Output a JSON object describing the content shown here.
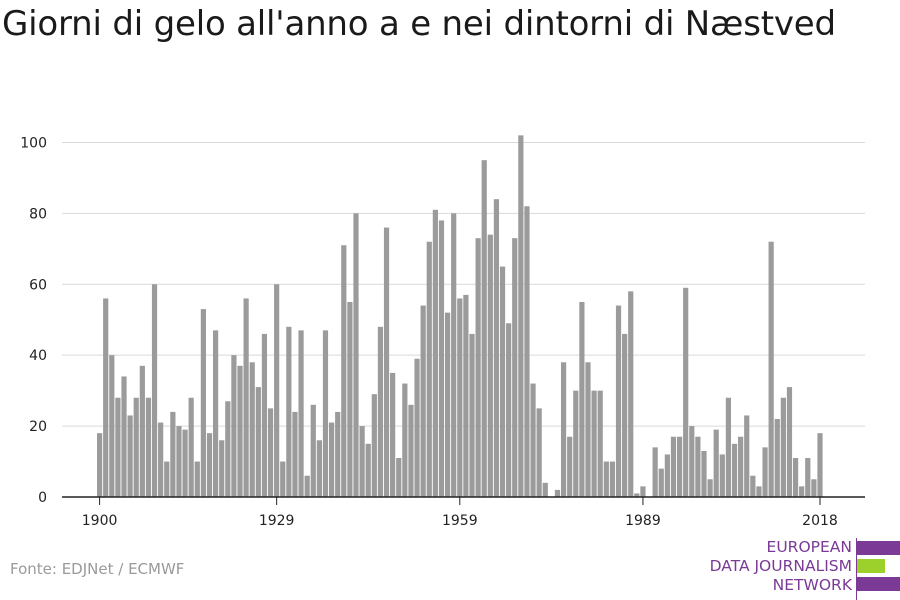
{
  "chart_data": {
    "type": "bar",
    "title": "Giorni di gelo all'anno a e nei dintorni di Næstved",
    "x": [
      1900,
      1901,
      1902,
      1903,
      1904,
      1905,
      1906,
      1907,
      1908,
      1909,
      1910,
      1911,
      1912,
      1913,
      1914,
      1915,
      1916,
      1917,
      1918,
      1919,
      1920,
      1921,
      1922,
      1923,
      1924,
      1925,
      1926,
      1927,
      1928,
      1929,
      1930,
      1931,
      1932,
      1933,
      1934,
      1935,
      1936,
      1937,
      1938,
      1939,
      1940,
      1941,
      1942,
      1943,
      1944,
      1945,
      1946,
      1947,
      1948,
      1949,
      1950,
      1951,
      1952,
      1953,
      1954,
      1955,
      1956,
      1957,
      1958,
      1959,
      1960,
      1961,
      1962,
      1963,
      1964,
      1965,
      1966,
      1967,
      1968,
      1969,
      1970,
      1971,
      1972,
      1973,
      1974,
      1975,
      1976,
      1977,
      1978,
      1979,
      1980,
      1981,
      1982,
      1983,
      1984,
      1985,
      1986,
      1987,
      1988,
      1989,
      1990,
      1991,
      1992,
      1993,
      1994,
      1995,
      1996,
      1997,
      1998,
      1999,
      2000,
      2001,
      2002,
      2003,
      2004,
      2005,
      2006,
      2007,
      2008,
      2009,
      2010,
      2011,
      2012,
      2013,
      2014,
      2015,
      2016,
      2017,
      2018,
      2019
    ],
    "values": [
      18,
      56,
      40,
      28,
      34,
      23,
      28,
      37,
      28,
      60,
      21,
      10,
      24,
      20,
      19,
      28,
      10,
      53,
      18,
      47,
      16,
      27,
      40,
      37,
      56,
      38,
      31,
      46,
      25,
      60,
      10,
      48,
      24,
      47,
      6,
      26,
      16,
      47,
      21,
      24,
      71,
      55,
      80,
      20,
      15,
      29,
      48,
      76,
      35,
      11,
      32,
      26,
      39,
      54,
      72,
      81,
      78,
      52,
      80,
      56,
      57,
      46,
      73,
      95,
      74,
      84,
      65,
      49,
      73,
      102,
      82,
      32,
      25,
      4,
      0,
      2,
      38,
      17,
      30,
      55,
      38,
      30,
      30,
      10,
      10,
      54,
      46,
      58,
      1,
      3,
      0,
      14,
      8,
      12,
      17,
      17,
      59,
      20,
      17,
      13,
      5,
      19,
      12,
      28,
      15,
      17,
      23,
      6,
      3,
      14,
      72,
      22,
      28,
      31,
      11,
      3,
      11,
      5,
      18,
      0
    ],
    "xticks": [
      "1900",
      "1929",
      "1959",
      "1989",
      "2018"
    ],
    "yticks": [
      "0",
      "20",
      "40",
      "60",
      "80",
      "100"
    ],
    "ylim": [
      0,
      110
    ],
    "xlabel": "",
    "ylabel": "",
    "grid": true,
    "bar_color": "#9b9b9b"
  },
  "footer": {
    "source": "Fonte: EDJNet / ECMWF"
  },
  "logo": {
    "line1": "EUROPEAN",
    "line2": "DATA JOURNALISM",
    "line3": "NETWORK",
    "purple": "#7a3a96",
    "green": "#9bd12a"
  }
}
